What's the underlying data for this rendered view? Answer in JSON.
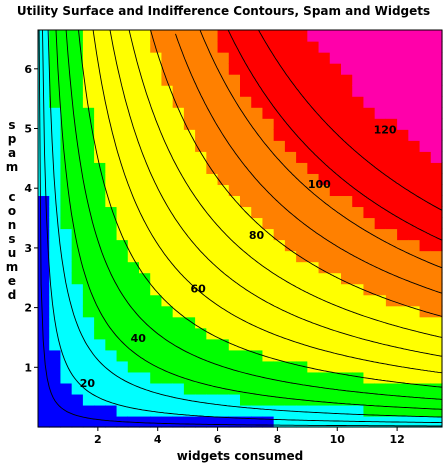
{
  "chart_data": {
    "type": "heatmap",
    "title": "Utility Surface and Indifference Contours, Spam and Widgets",
    "xlabel": "widgets consumed",
    "ylabel": "spam consumed",
    "xlim": [
      0,
      13.5
    ],
    "ylim": [
      0,
      6.65
    ],
    "x_ticks": [
      2,
      4,
      6,
      8,
      10,
      12
    ],
    "y_ticks": [
      1,
      2,
      3,
      4,
      5,
      6
    ],
    "contour_levels": [
      10,
      20,
      30,
      40,
      50,
      60,
      70,
      80,
      90,
      100,
      110,
      120,
      130,
      140
    ],
    "contour_labels": [
      {
        "text": "20",
        "x": 1.65,
        "y": 0.72
      },
      {
        "text": "40",
        "x": 3.35,
        "y": 1.47
      },
      {
        "text": "60",
        "x": 5.35,
        "y": 2.3
      },
      {
        "text": "80",
        "x": 7.3,
        "y": 3.2
      },
      {
        "text": "100",
        "x": 9.4,
        "y": 4.05
      },
      {
        "text": "120",
        "x": 11.6,
        "y": 4.97
      }
    ],
    "colormap": "rainbow: blue → cyan → green → yellow → orange → red → magenta",
    "color_stops": [
      "#0000ff",
      "#00ffff",
      "#00ff00",
      "#ffff00",
      "#ff8000",
      "#ff0000",
      "#ff00aa"
    ],
    "grid": false,
    "legend": "none"
  }
}
